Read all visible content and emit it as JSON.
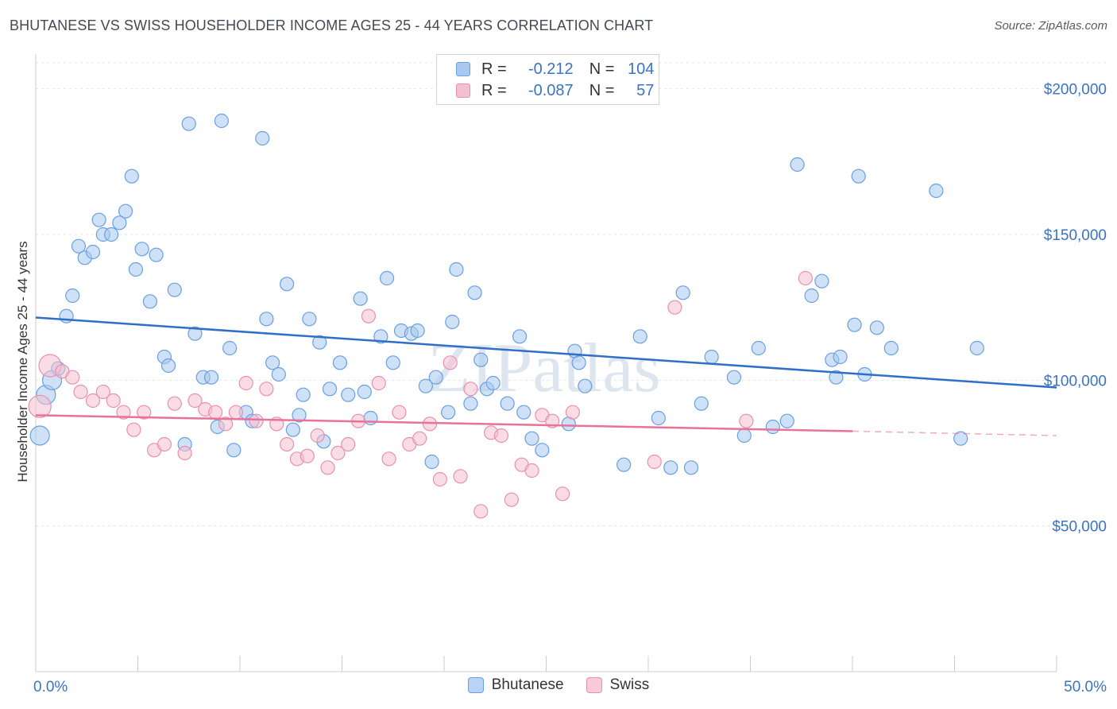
{
  "title": "BHUTANESE VS SWISS HOUSEHOLDER INCOME AGES 25 - 44 YEARS CORRELATION CHART",
  "source": "Source: ZipAtlas.com",
  "watermark": "ZIPatlas",
  "legend": {
    "rows": [
      {
        "r_label": "R =",
        "r_value": "-0.212",
        "n_label": "N =",
        "n_value": "104",
        "color": "#a8c8ef",
        "border": "#6a9fe0"
      },
      {
        "r_label": "R =",
        "r_value": "-0.087",
        "n_label": "N =",
        "n_value": "57",
        "color": "#f6bfd0",
        "border": "#e890ad"
      }
    ]
  },
  "bottom_legend": [
    {
      "name": "Bhutanese",
      "color": "#b8d3f3",
      "border": "#6a9fe0"
    },
    {
      "name": "Swiss",
      "color": "#f9cad8",
      "border": "#e890ad"
    }
  ],
  "chart_data": {
    "type": "scatter",
    "title": "BHUTANESE VS SWISS HOUSEHOLDER INCOME AGES 25 - 44 YEARS CORRELATION CHART",
    "xlabel": "",
    "ylabel": "Householder Income Ages 25 - 44 years",
    "xlim": [
      0,
      50
    ],
    "ylim": [
      0,
      210000
    ],
    "x_tick_labels": [
      "0.0%",
      "50.0%"
    ],
    "y_ticks": [
      50000,
      100000,
      150000,
      200000
    ],
    "y_tick_labels": [
      "$50,000",
      "$100,000",
      "$150,000",
      "$200,000"
    ],
    "grid": true,
    "colors": {
      "blue": "#3b73c4",
      "blue_line": "#2f6fc6",
      "pink_line": "#e8729a",
      "blue_fill": "#a8c8ef",
      "pink_fill": "#f6bfd0"
    },
    "series": [
      {
        "name": "Bhutanese",
        "trend": {
          "x": [
            0,
            50
          ],
          "y": [
            121500,
            97500
          ]
        },
        "points": [
          [
            0.2,
            81000
          ],
          [
            0.5,
            95000
          ],
          [
            0.8,
            100000
          ],
          [
            1.1,
            104000
          ],
          [
            1.5,
            122000
          ],
          [
            1.8,
            129000
          ],
          [
            2.1,
            146000
          ],
          [
            2.4,
            142000
          ],
          [
            2.8,
            144000
          ],
          [
            3.1,
            155000
          ],
          [
            3.3,
            150000
          ],
          [
            3.7,
            150000
          ],
          [
            4.1,
            154000
          ],
          [
            4.4,
            158000
          ],
          [
            4.7,
            170000
          ],
          [
            4.9,
            138000
          ],
          [
            5.2,
            145000
          ],
          [
            5.6,
            127000
          ],
          [
            5.9,
            143000
          ],
          [
            6.3,
            108000
          ],
          [
            6.5,
            105000
          ],
          [
            6.8,
            131000
          ],
          [
            7.3,
            78000
          ],
          [
            7.5,
            188000
          ],
          [
            7.8,
            116000
          ],
          [
            8.2,
            101000
          ],
          [
            8.6,
            101000
          ],
          [
            8.9,
            84000
          ],
          [
            9.1,
            189000
          ],
          [
            9.5,
            111000
          ],
          [
            9.7,
            76000
          ],
          [
            10.3,
            89000
          ],
          [
            10.6,
            86000
          ],
          [
            11.1,
            183000
          ],
          [
            11.3,
            121000
          ],
          [
            11.6,
            106000
          ],
          [
            11.9,
            102000
          ],
          [
            12.3,
            133000
          ],
          [
            12.6,
            83000
          ],
          [
            12.9,
            88000
          ],
          [
            13.1,
            95000
          ],
          [
            13.4,
            121000
          ],
          [
            13.9,
            113000
          ],
          [
            14.1,
            79000
          ],
          [
            14.4,
            97000
          ],
          [
            14.9,
            106000
          ],
          [
            15.3,
            95000
          ],
          [
            15.9,
            128000
          ],
          [
            16.1,
            96000
          ],
          [
            16.4,
            87000
          ],
          [
            16.9,
            115000
          ],
          [
            17.2,
            135000
          ],
          [
            17.5,
            106000
          ],
          [
            17.9,
            117000
          ],
          [
            18.4,
            116000
          ],
          [
            18.7,
            117000
          ],
          [
            19.1,
            98000
          ],
          [
            19.4,
            72000
          ],
          [
            19.6,
            101000
          ],
          [
            20.2,
            89000
          ],
          [
            20.4,
            120000
          ],
          [
            20.6,
            138000
          ],
          [
            21.3,
            92000
          ],
          [
            21.5,
            130000
          ],
          [
            21.8,
            107000
          ],
          [
            22.1,
            97000
          ],
          [
            22.4,
            99000
          ],
          [
            23.1,
            92000
          ],
          [
            23.7,
            115000
          ],
          [
            23.9,
            89000
          ],
          [
            24.3,
            80000
          ],
          [
            24.8,
            76000
          ],
          [
            25.3,
            198000
          ],
          [
            26.1,
            85000
          ],
          [
            26.4,
            110000
          ],
          [
            26.6,
            106000
          ],
          [
            26.9,
            98000
          ],
          [
            28.8,
            71000
          ],
          [
            29.6,
            115000
          ],
          [
            30.5,
            87000
          ],
          [
            31.1,
            70000
          ],
          [
            31.7,
            130000
          ],
          [
            32.1,
            70000
          ],
          [
            32.6,
            92000
          ],
          [
            33.1,
            108000
          ],
          [
            34.2,
            101000
          ],
          [
            34.7,
            81000
          ],
          [
            35.4,
            111000
          ],
          [
            36.1,
            84000
          ],
          [
            36.8,
            86000
          ],
          [
            37.3,
            174000
          ],
          [
            38.0,
            129000
          ],
          [
            38.5,
            134000
          ],
          [
            39.0,
            107000
          ],
          [
            39.2,
            101000
          ],
          [
            39.4,
            108000
          ],
          [
            40.1,
            119000
          ],
          [
            40.6,
            102000
          ],
          [
            41.2,
            118000
          ],
          [
            41.9,
            111000
          ],
          [
            44.1,
            165000
          ],
          [
            45.3,
            80000
          ],
          [
            46.1,
            111000
          ],
          [
            40.3,
            170000
          ]
        ]
      },
      {
        "name": "Swiss",
        "trend": {
          "x": [
            0,
            40
          ],
          "y": [
            88000,
            82500
          ],
          "dash_x": [
            40,
            50
          ],
          "dash_y": [
            82500,
            81000
          ]
        },
        "points": [
          [
            0.2,
            91000
          ],
          [
            0.7,
            105000
          ],
          [
            1.3,
            103000
          ],
          [
            1.8,
            101000
          ],
          [
            2.2,
            96000
          ],
          [
            2.8,
            93000
          ],
          [
            3.3,
            96000
          ],
          [
            3.8,
            93000
          ],
          [
            4.3,
            89000
          ],
          [
            4.8,
            83000
          ],
          [
            5.3,
            89000
          ],
          [
            5.8,
            76000
          ],
          [
            6.3,
            78000
          ],
          [
            6.8,
            92000
          ],
          [
            7.3,
            75000
          ],
          [
            7.8,
            93000
          ],
          [
            8.3,
            90000
          ],
          [
            8.8,
            89000
          ],
          [
            9.3,
            85000
          ],
          [
            9.8,
            89000
          ],
          [
            10.3,
            99000
          ],
          [
            10.8,
            86000
          ],
          [
            11.3,
            97000
          ],
          [
            11.8,
            85000
          ],
          [
            12.3,
            78000
          ],
          [
            12.8,
            73000
          ],
          [
            13.3,
            74000
          ],
          [
            13.8,
            81000
          ],
          [
            14.3,
            70000
          ],
          [
            14.8,
            75000
          ],
          [
            15.3,
            78000
          ],
          [
            15.8,
            86000
          ],
          [
            16.3,
            122000
          ],
          [
            16.8,
            99000
          ],
          [
            17.3,
            73000
          ],
          [
            17.8,
            89000
          ],
          [
            18.3,
            78000
          ],
          [
            18.8,
            80000
          ],
          [
            19.3,
            85000
          ],
          [
            19.8,
            66000
          ],
          [
            20.3,
            106000
          ],
          [
            20.8,
            67000
          ],
          [
            21.3,
            97000
          ],
          [
            21.8,
            55000
          ],
          [
            22.3,
            82000
          ],
          [
            22.8,
            81000
          ],
          [
            23.3,
            59000
          ],
          [
            23.8,
            71000
          ],
          [
            24.3,
            69000
          ],
          [
            24.8,
            88000
          ],
          [
            25.3,
            86000
          ],
          [
            25.8,
            61000
          ],
          [
            26.3,
            89000
          ],
          [
            30.3,
            72000
          ],
          [
            31.3,
            125000
          ],
          [
            34.8,
            86000
          ],
          [
            37.7,
            135000
          ]
        ]
      }
    ]
  }
}
